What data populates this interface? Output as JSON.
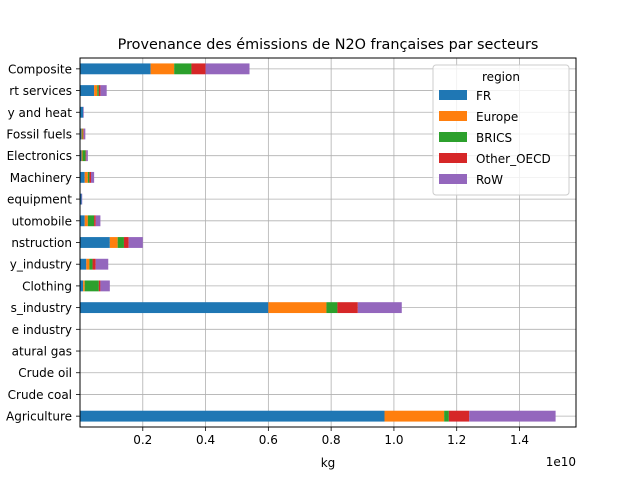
{
  "chart_data": {
    "type": "bar",
    "orientation": "horizontal",
    "stacked": true,
    "title": "Provenance des émissions de N2O françaises par secteurs",
    "xlabel": "kg",
    "ylabel": "",
    "x_offset_text": "1e10",
    "xlim": [
      0,
      1.58
    ],
    "xticks": [
      0.2,
      0.4,
      0.6,
      0.8,
      1.0,
      1.2,
      1.4
    ],
    "xtick_labels": [
      "0.2",
      "0.4",
      "0.6",
      "0.8",
      "1.0",
      "1.2",
      "1.4"
    ],
    "grid": true,
    "legend": {
      "title": "region",
      "placement": "top-right"
    },
    "categories": [
      "Agriculture",
      "Crude coal",
      "Crude oil",
      "Natural gas",
      "Extractive industry",
      "Biomass_industry",
      "Clothing",
      "Heavy_industry",
      "Construction",
      "Automobile",
      "Oth transport equipment",
      "Machinery",
      "Electronics",
      "Fossil fuels",
      "Electricity and heat",
      "Transport services",
      "Composite"
    ],
    "category_labels": [
      "Agriculture",
      "Crude coal",
      "Crude oil",
      "atural gas",
      "e industry",
      "s_industry",
      "Clothing",
      "y_industry",
      "nstruction",
      "utomobile",
      "equipment",
      "Machinery",
      "Electronics",
      "Fossil fuels",
      "y and heat",
      "rt services",
      "Composite"
    ],
    "series": [
      {
        "name": "FR",
        "color": "#1f77b4",
        "values": [
          0.97,
          0,
          0,
          0,
          0,
          0.6,
          0.01,
          0.02,
          0.095,
          0.015,
          0.005,
          0.015,
          0.005,
          0.005,
          0.01,
          0.045,
          0.225
        ]
      },
      {
        "name": "Europe",
        "color": "#ff7f0e",
        "values": [
          0.19,
          0,
          0,
          0,
          0,
          0.185,
          0.005,
          0.01,
          0.025,
          0.01,
          0,
          0.01,
          0.003,
          0.003,
          0,
          0.01,
          0.075
        ]
      },
      {
        "name": "BRICS",
        "color": "#2ca02c",
        "values": [
          0.015,
          0,
          0,
          0,
          0,
          0.035,
          0.045,
          0.01,
          0.02,
          0.02,
          0,
          0.005,
          0.01,
          0.002,
          0,
          0.005,
          0.055
        ]
      },
      {
        "name": "Other_OECD",
        "color": "#d62728",
        "values": [
          0.065,
          0,
          0,
          0,
          0,
          0.065,
          0.005,
          0.01,
          0.015,
          0.005,
          0,
          0.005,
          0.002,
          0.002,
          0,
          0.005,
          0.045
        ]
      },
      {
        "name": "RoW",
        "color": "#9467bd",
        "values": [
          0.275,
          0,
          0,
          0,
          0,
          0.14,
          0.03,
          0.04,
          0.045,
          0.015,
          0.002,
          0.01,
          0.005,
          0.005,
          0.002,
          0.02,
          0.14
        ]
      }
    ]
  }
}
